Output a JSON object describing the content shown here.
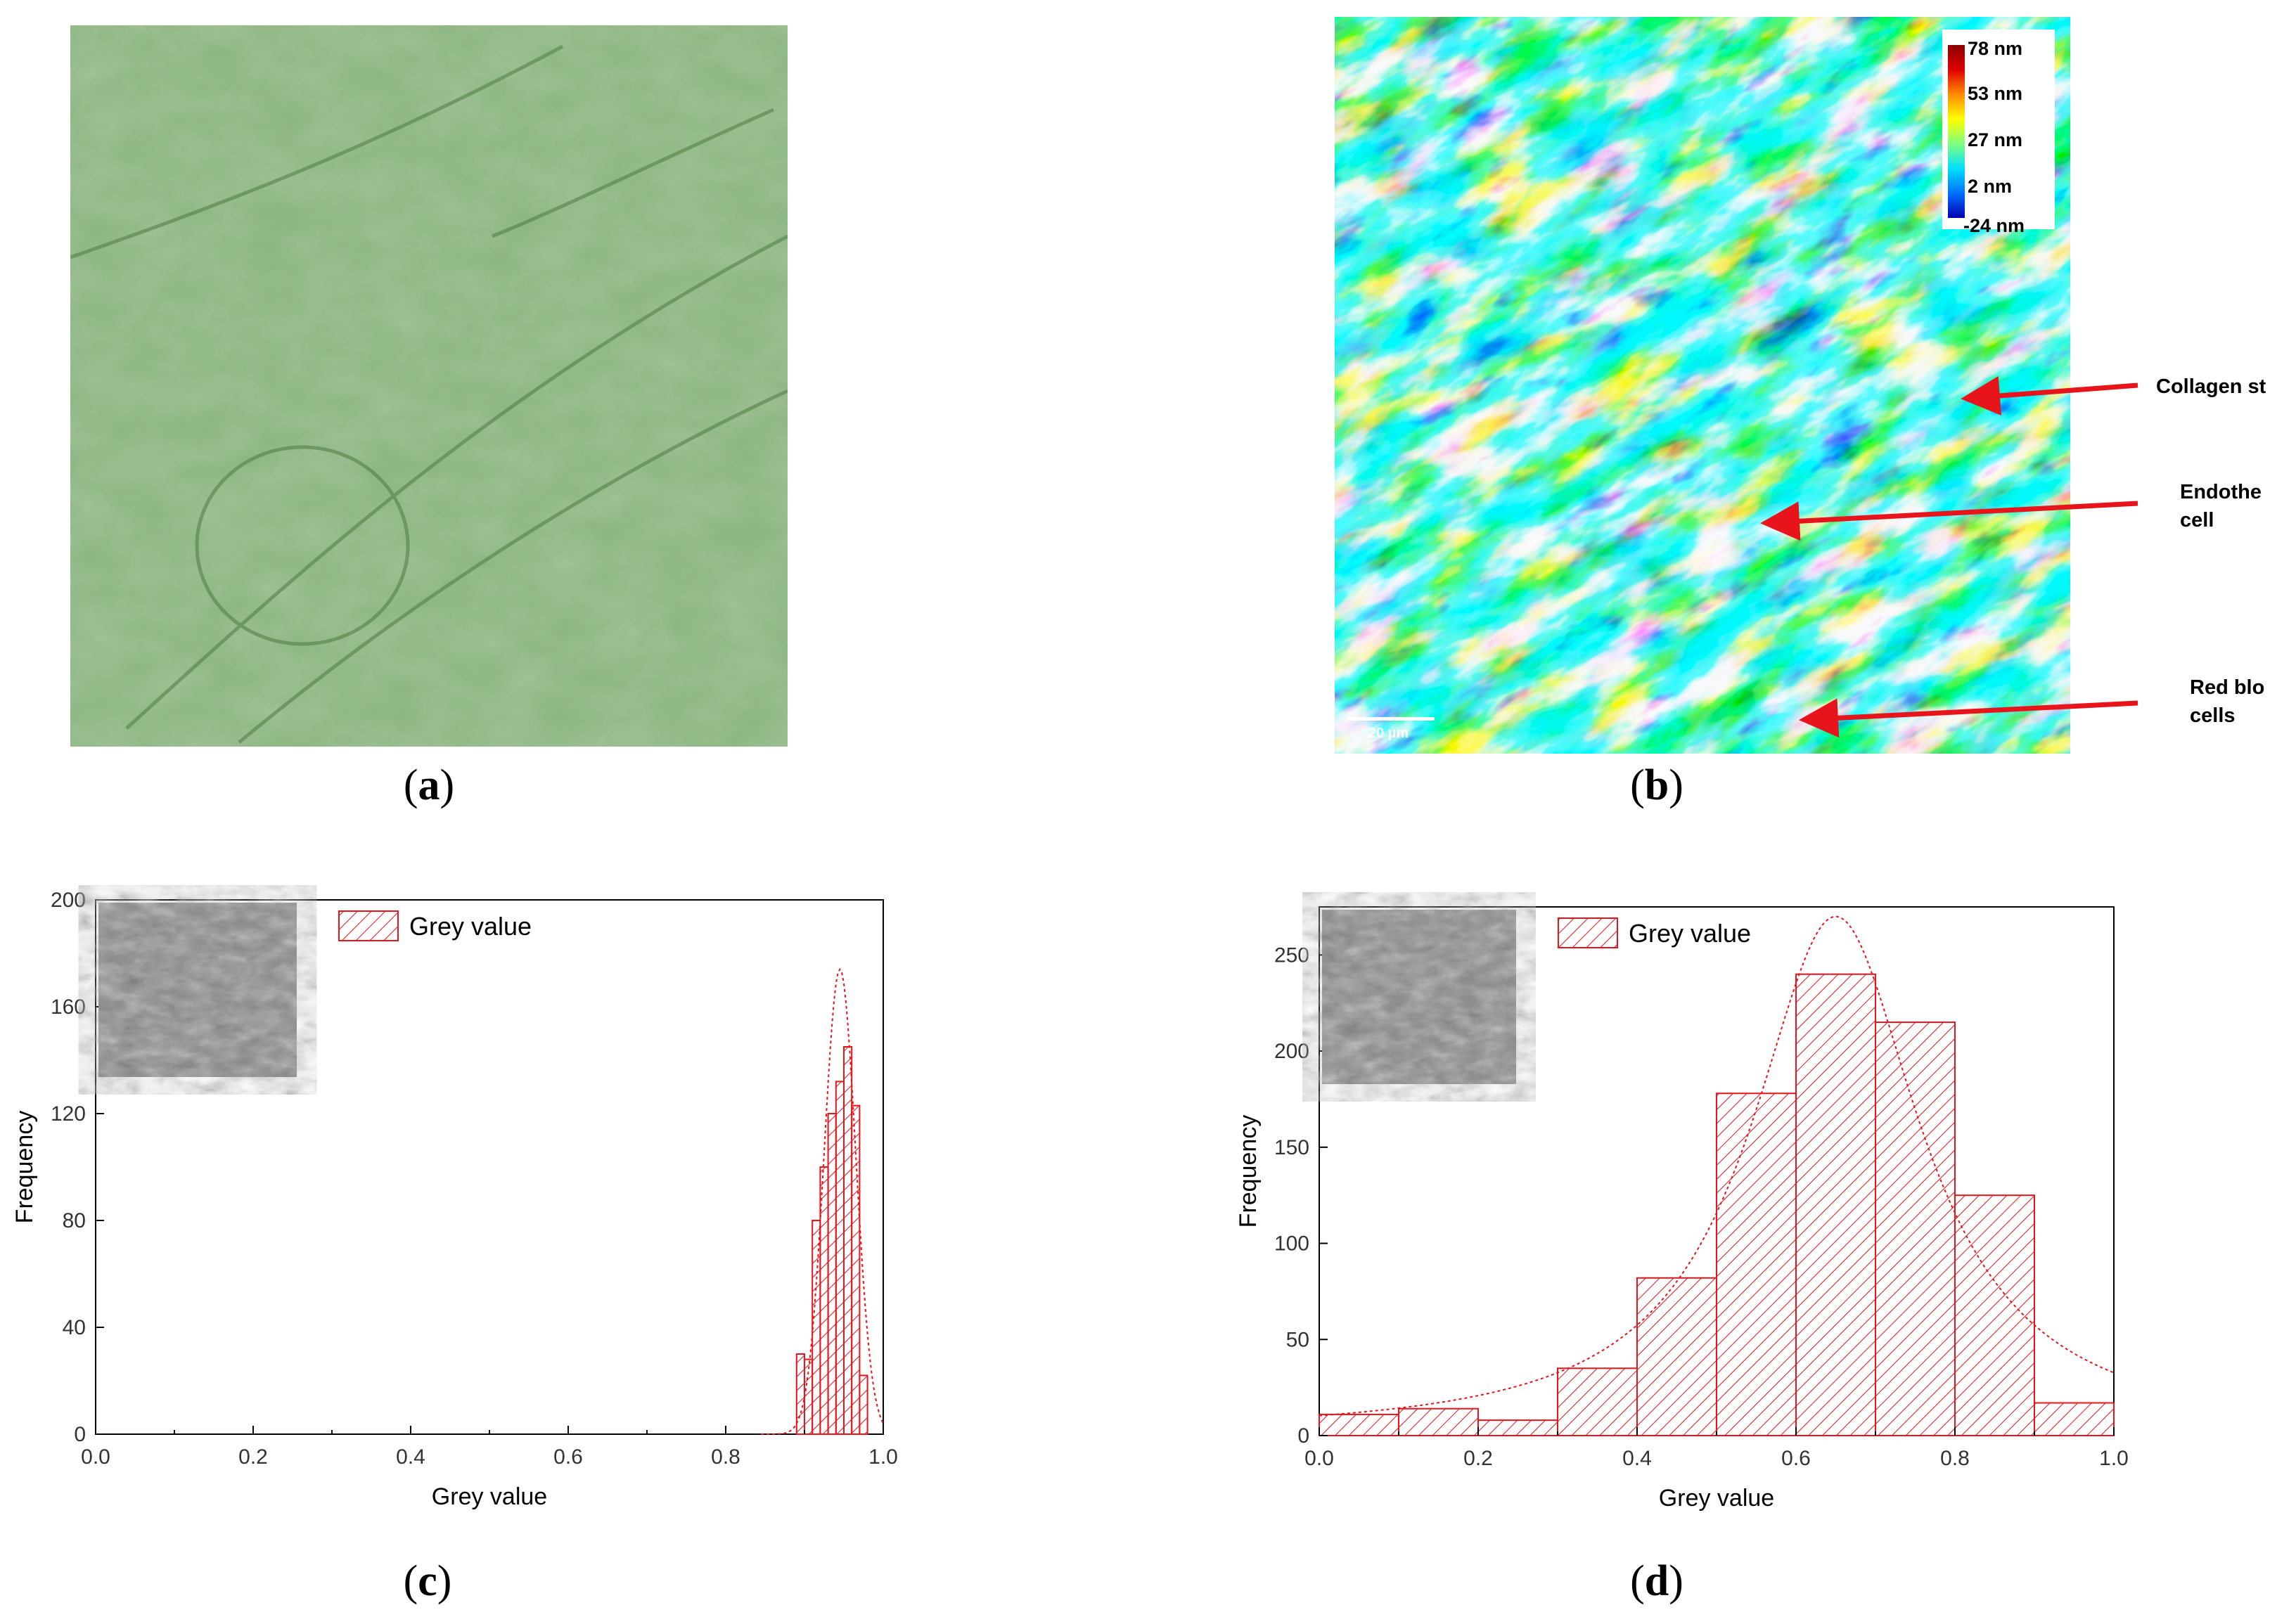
{
  "captions": {
    "a": "a",
    "b": "b",
    "c": "c",
    "d": "d"
  },
  "panel_b": {
    "colorbar_labels": [
      "78 nm",
      "53 nm",
      "27 nm",
      "2 nm",
      "-24 nm"
    ],
    "scale_bar": "20 µm",
    "annotations": [
      {
        "text": "Collagen st"
      },
      {
        "text": "Endothe\ncell"
      },
      {
        "text": "Red blo\ncells"
      }
    ],
    "colors": {
      "annotation_arrow": "#e8141b"
    }
  },
  "chart_data": [
    {
      "type": "bar",
      "panel": "c",
      "xlabel": "Grey value",
      "ylabel": "Frequency",
      "xlim": [
        0.0,
        1.0
      ],
      "ylim": [
        0,
        200
      ],
      "xticks": [
        "0.0",
        "0.2",
        "0.4",
        "0.6",
        "0.8",
        "1.0"
      ],
      "yticks": [
        "0",
        "40",
        "80",
        "120",
        "160",
        "200"
      ],
      "legend": "Grey value",
      "legend_position": "top-left",
      "bin_width": 0.01,
      "bins": [
        {
          "x": 0.89,
          "value": 30
        },
        {
          "x": 0.9,
          "value": 28
        },
        {
          "x": 0.91,
          "value": 80
        },
        {
          "x": 0.92,
          "value": 100
        },
        {
          "x": 0.93,
          "value": 120
        },
        {
          "x": 0.94,
          "value": 132
        },
        {
          "x": 0.95,
          "value": 145
        },
        {
          "x": 0.96,
          "value": 123
        },
        {
          "x": 0.97,
          "value": 22
        }
      ],
      "fit_curve": {
        "type": "gaussian",
        "mean": 0.945,
        "sigma": 0.02,
        "peak": 174
      },
      "colors": {
        "bar": "#e8141b"
      }
    },
    {
      "type": "bar",
      "panel": "d",
      "xlabel": "Grey value",
      "ylabel": "Frequency",
      "xlim": [
        0.0,
        1.0
      ],
      "ylim": [
        0,
        275
      ],
      "xticks": [
        "0.0",
        "0.2",
        "0.4",
        "0.6",
        "0.8",
        "1.0"
      ],
      "yticks": [
        "0",
        "50",
        "100",
        "150",
        "200",
        "250"
      ],
      "legend": "Grey value",
      "legend_position": "top-left",
      "bin_width": 0.1,
      "bins": [
        {
          "x": 0.0,
          "value": 11
        },
        {
          "x": 0.1,
          "value": 14
        },
        {
          "x": 0.2,
          "value": 8
        },
        {
          "x": 0.3,
          "value": 35
        },
        {
          "x": 0.4,
          "value": 82
        },
        {
          "x": 0.5,
          "value": 178
        },
        {
          "x": 0.6,
          "value": 240
        },
        {
          "x": 0.7,
          "value": 215
        },
        {
          "x": 0.8,
          "value": 125
        },
        {
          "x": 0.9,
          "value": 17
        }
      ],
      "fit_curve": {
        "type": "lorentzian",
        "center": 0.65,
        "gamma": 0.13,
        "peak": 270
      },
      "colors": {
        "bar": "#e8141b"
      }
    }
  ]
}
